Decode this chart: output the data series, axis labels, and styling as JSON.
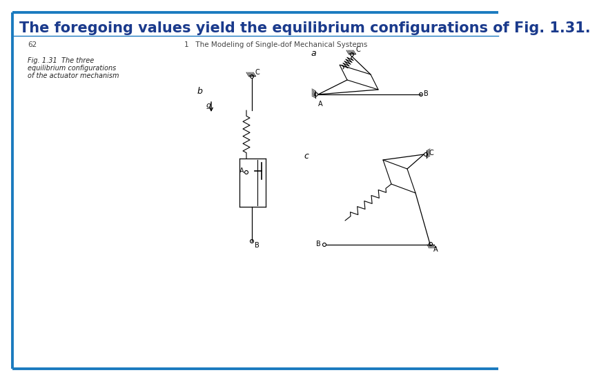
{
  "title_text": "The foregoing values yield the equilibrium configurations of Fig. 1.31.",
  "title_color": "#1a3a8c",
  "border_color": "#1a7abf",
  "page_bg": "#ffffff",
  "bottom_line_color": "#1a7abf",
  "page_number": "62",
  "header_right": "1   The Modeling of Single-dof Mechanical Systems",
  "fig_caption_line1": "Fig. 1.31  The three",
  "fig_caption_line2": "equilibrium configurations",
  "fig_caption_line3": "of the actuator mechanism",
  "title_fontsize": 15,
  "body_fontsize": 7.5,
  "header_fontsize": 7.5
}
